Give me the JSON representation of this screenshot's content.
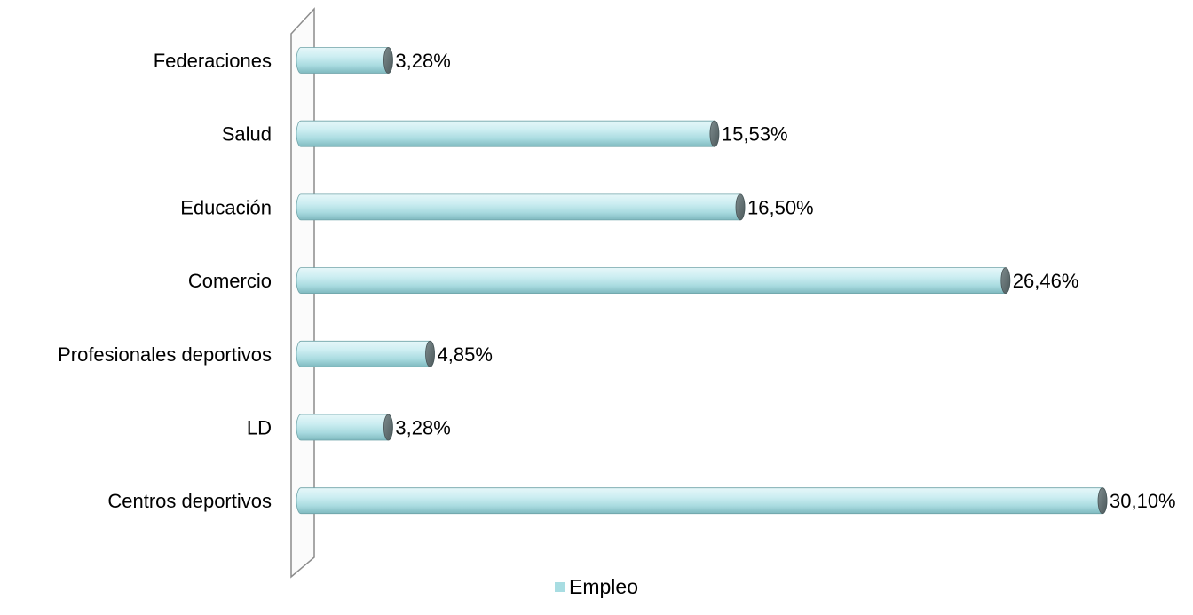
{
  "chart_data": {
    "type": "bar",
    "orientation": "horizontal",
    "categories": [
      "Federaciones",
      "Salud",
      "Educación",
      "Comercio",
      "Profesionales deportivos",
      "LD",
      "Centros deportivos"
    ],
    "series": [
      {
        "name": "Empleo",
        "values": [
          3.28,
          15.53,
          16.5,
          26.46,
          4.85,
          3.28,
          30.1
        ],
        "value_labels": [
          "3,28%",
          "15,53%",
          "16,50%",
          "26,46%",
          "4,85%",
          "3,28%",
          "30,10%"
        ],
        "color": "#a8dde2"
      }
    ],
    "xlim": [
      0,
      30.1
    ],
    "grid": false,
    "legend": "bottom-center",
    "style": "3d-cylinder"
  },
  "legend": {
    "label": "Empleo"
  }
}
